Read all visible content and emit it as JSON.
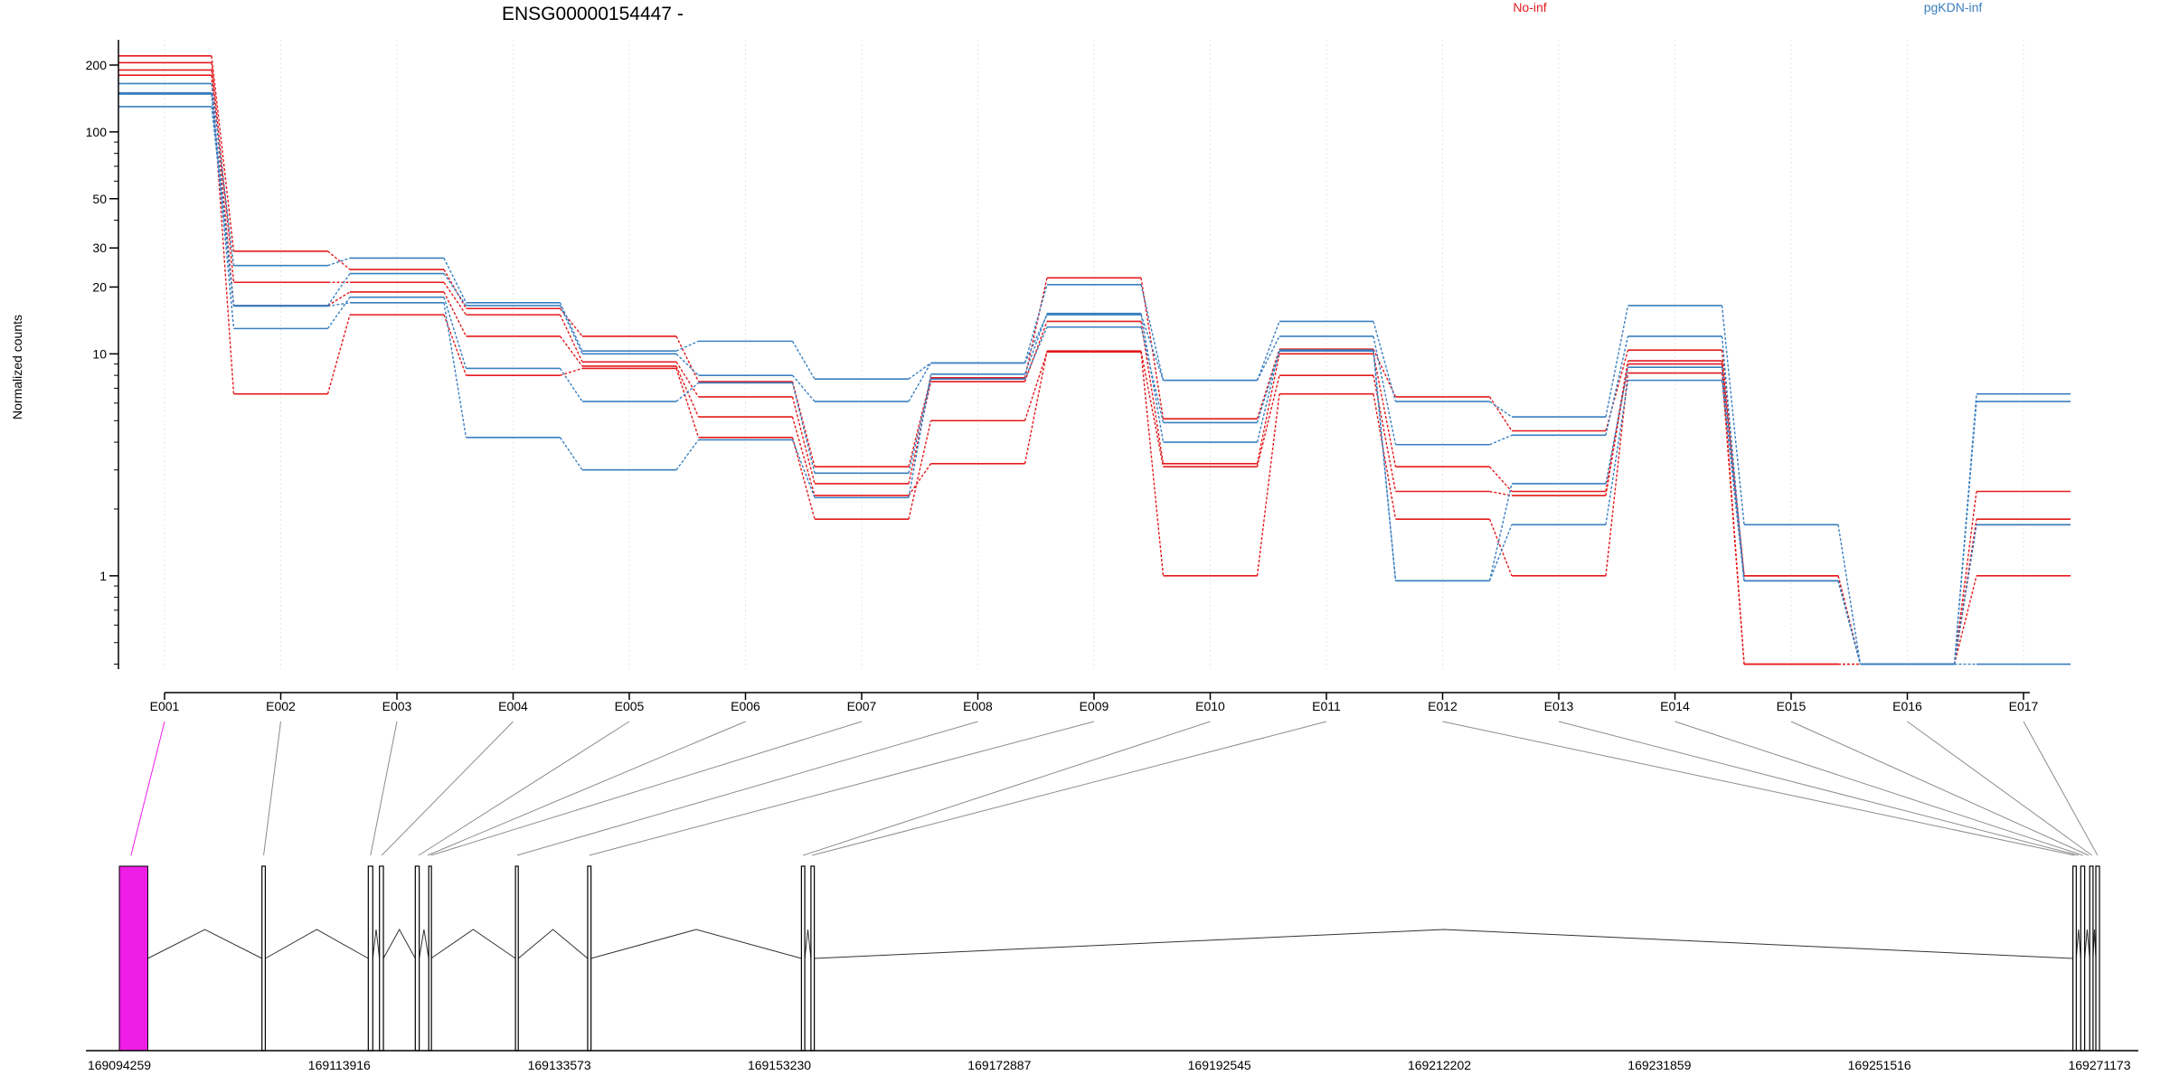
{
  "chart_data": {
    "type": "line",
    "title": "ENSG00000154447 -",
    "ylabel": "Normalized counts",
    "yscale": "log",
    "ylim": [
      0.38,
      260
    ],
    "yticks": [
      {
        "label": "1",
        "value": 1
      },
      {
        "label": "10",
        "value": 10
      },
      {
        "label": "20",
        "value": 20
      },
      {
        "label": "30",
        "value": 30
      },
      {
        "label": "50",
        "value": 50
      },
      {
        "label": "100",
        "value": 100
      },
      {
        "label": "200",
        "value": 200
      }
    ],
    "categories": [
      "E001",
      "E002",
      "E003",
      "E004",
      "E005",
      "E006",
      "E007",
      "E008",
      "E009",
      "E010",
      "E011",
      "E012",
      "E013",
      "E014",
      "E015",
      "E016",
      "E017"
    ],
    "legend": [
      {
        "label": "No-inf",
        "color": "#e31a1c"
      },
      {
        "label": "pgKDN-inf",
        "color": "#3a7fc0"
      }
    ],
    "series": [
      {
        "group": "No-inf",
        "color": "#e31a1c",
        "values": [
          220,
          29,
          24,
          16,
          12,
          7.5,
          3.1,
          7.8,
          22,
          5.1,
          10.5,
          6.4,
          4.5,
          10.4,
          1.0,
          0.4,
          2.4
        ]
      },
      {
        "group": "No-inf",
        "color": "#e31a1c",
        "values": [
          205,
          21,
          21,
          15,
          9.2,
          6.4,
          2.6,
          7.5,
          14,
          3.2,
          10,
          3.1,
          2.4,
          9.3,
          1.0,
          0.4,
          1.8
        ]
      },
      {
        "group": "No-inf",
        "color": "#e31a1c",
        "values": [
          190,
          16.5,
          19,
          12,
          8.8,
          5.2,
          2.3,
          3.2,
          10.3,
          3.1,
          8,
          2.4,
          2.3,
          9.0,
          0.4,
          0.4,
          1.0
        ]
      },
      {
        "group": "No-inf",
        "color": "#e31a1c",
        "values": [
          180,
          6.6,
          15,
          8,
          8.6,
          4.2,
          1.8,
          5.0,
          10.2,
          1.0,
          6.6,
          1.8,
          1.0,
          8.2,
          0.4,
          0.4,
          1.7
        ]
      },
      {
        "group": "pgKDN-inf",
        "color": "#3a7fc0",
        "values": [
          165,
          25,
          27,
          17,
          10.3,
          11.4,
          7.7,
          9.1,
          20.5,
          7.6,
          14,
          6.1,
          5.2,
          16.5,
          1.7,
          0.4,
          6.6
        ]
      },
      {
        "group": "pgKDN-inf",
        "color": "#3a7fc0",
        "values": [
          150,
          16.5,
          23,
          16.5,
          10.0,
          8.0,
          6.1,
          9.1,
          15,
          7.6,
          12,
          3.9,
          4.3,
          12,
          0.95,
          0.4,
          6.1
        ]
      },
      {
        "group": "pgKDN-inf",
        "color": "#3a7fc0",
        "values": [
          148,
          13,
          18,
          8.6,
          6.1,
          7.4,
          2.9,
          7.7,
          13.2,
          4.9,
          10.3,
          0.95,
          2.6,
          8.7,
          0.95,
          0.4,
          1.7
        ]
      },
      {
        "group": "pgKDN-inf",
        "color": "#3a7fc0",
        "values": [
          130,
          16.4,
          17,
          4.2,
          3.0,
          4.1,
          2.25,
          8.1,
          15.2,
          4.0,
          10.4,
          0.95,
          1.7,
          7.6,
          0.95,
          0.4,
          0.4
        ]
      }
    ],
    "gene_model": {
      "coordinate_labels": [
        "169094259",
        "169113916",
        "169133573",
        "169153230",
        "169172887",
        "169192545",
        "169212202",
        "169231859",
        "169251516",
        "169271173"
      ],
      "highlighted_exon": "E001",
      "highlight_color": "#ee1ee6",
      "exons": [
        {
          "start": 169094259,
          "end": 169096800
        },
        {
          "start": 169107000,
          "end": 169107300
        },
        {
          "start": 169116500,
          "end": 169116900
        },
        {
          "start": 169117500,
          "end": 169117850
        },
        {
          "start": 169120700,
          "end": 169121050
        },
        {
          "start": 169121900,
          "end": 169122100
        },
        {
          "start": 169129650,
          "end": 169129900
        },
        {
          "start": 169136100,
          "end": 169136400
        },
        {
          "start": 169155200,
          "end": 169155500
        },
        {
          "start": 169156050,
          "end": 169156350
        },
        {
          "start": 169268800,
          "end": 169269100
        },
        {
          "start": 169269500,
          "end": 169269850
        },
        {
          "start": 169270300,
          "end": 169270600
        },
        {
          "start": 169270850,
          "end": 169271173
        }
      ],
      "exon_bin_links": [
        {
          "bin": "E001",
          "at": 169095300
        },
        {
          "bin": "E002",
          "at": 169107150
        },
        {
          "bin": "E003",
          "at": 169116700
        },
        {
          "bin": "E004",
          "at": 169117700
        },
        {
          "bin": "E005",
          "at": 169121000
        },
        {
          "bin": "E006",
          "at": 169121800
        },
        {
          "bin": "E007",
          "at": 169122100
        },
        {
          "bin": "E008",
          "at": 169129800
        },
        {
          "bin": "E009",
          "at": 169136250
        },
        {
          "bin": "E010",
          "at": 169155350
        },
        {
          "bin": "E011",
          "at": 169156150
        },
        {
          "bin": "E012",
          "at": 169268950
        },
        {
          "bin": "E013",
          "at": 169269300
        },
        {
          "bin": "E014",
          "at": 169269700
        },
        {
          "bin": "E015",
          "at": 169270200
        },
        {
          "bin": "E016",
          "at": 169270500
        },
        {
          "bin": "E017",
          "at": 169271000
        }
      ]
    }
  }
}
